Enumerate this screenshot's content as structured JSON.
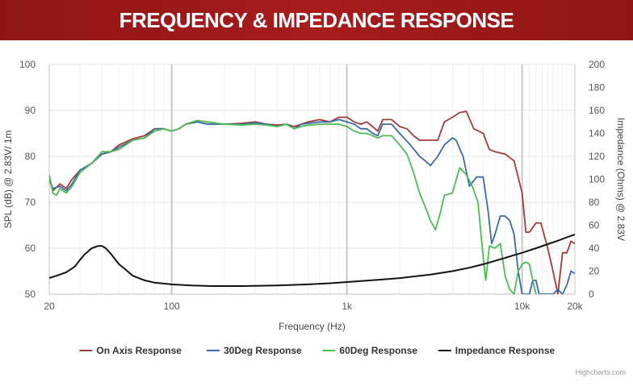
{
  "header": {
    "title": "FREQUENCY & IMPEDANCE RESPONSE"
  },
  "credits": "Highcharts.com",
  "chart_data": {
    "type": "line",
    "xlabel": "Frequency (Hz)",
    "ylabel": "SPL (dB) @ 2.83V/ 1m",
    "y2label": "Impedance (Ohms) @ 2.83V",
    "x_scale": "log",
    "xlim": [
      20,
      20000
    ],
    "ylim": [
      50,
      100
    ],
    "y2lim": [
      0,
      200
    ],
    "grid": true,
    "legend_position": "bottom-center",
    "x_ticks": [
      {
        "value": 20,
        "label": "20"
      },
      {
        "value": 100,
        "label": "100"
      },
      {
        "value": 1000,
        "label": "1k"
      },
      {
        "value": 10000,
        "label": "10k"
      },
      {
        "value": 20000,
        "label": "20k"
      }
    ],
    "y_ticks": [
      50,
      60,
      70,
      80,
      90,
      100
    ],
    "y2_ticks": [
      0,
      20,
      40,
      60,
      80,
      100,
      120,
      140,
      160,
      180,
      200
    ],
    "series": [
      {
        "name": "On Axis Response",
        "color": "#a33a3a",
        "axis": "left",
        "points": [
          [
            20,
            75
          ],
          [
            21,
            72.5
          ],
          [
            23,
            74
          ],
          [
            25,
            73
          ],
          [
            27,
            75
          ],
          [
            30,
            77
          ],
          [
            35,
            78.5
          ],
          [
            40,
            80.5
          ],
          [
            45,
            81
          ],
          [
            50,
            82.5
          ],
          [
            60,
            83.8
          ],
          [
            70,
            84.5
          ],
          [
            80,
            86
          ],
          [
            90,
            86
          ],
          [
            100,
            85.5
          ],
          [
            110,
            86
          ],
          [
            120,
            87
          ],
          [
            140,
            87.5
          ],
          [
            160,
            87
          ],
          [
            200,
            87
          ],
          [
            250,
            87.2
          ],
          [
            300,
            87.5
          ],
          [
            350,
            87
          ],
          [
            400,
            86.8
          ],
          [
            450,
            87
          ],
          [
            500,
            86.5
          ],
          [
            550,
            87
          ],
          [
            600,
            87.5
          ],
          [
            700,
            88
          ],
          [
            800,
            87.5
          ],
          [
            900,
            88.5
          ],
          [
            1000,
            88.5
          ],
          [
            1100,
            87.5
          ],
          [
            1200,
            87
          ],
          [
            1300,
            87.5
          ],
          [
            1400,
            86.5
          ],
          [
            1500,
            85.5
          ],
          [
            1600,
            88
          ],
          [
            1800,
            88
          ],
          [
            2000,
            86.5
          ],
          [
            2200,
            86
          ],
          [
            2400,
            84.5
          ],
          [
            2600,
            83.5
          ],
          [
            3000,
            83.5
          ],
          [
            3300,
            83.5
          ],
          [
            3600,
            87.5
          ],
          [
            4000,
            88.5
          ],
          [
            4400,
            89.5
          ],
          [
            4800,
            89.8
          ],
          [
            5300,
            86
          ],
          [
            6000,
            85
          ],
          [
            6500,
            81.5
          ],
          [
            7000,
            81
          ],
          [
            8000,
            80.5
          ],
          [
            9000,
            79
          ],
          [
            10000,
            72
          ],
          [
            10500,
            63.5
          ],
          [
            11000,
            63.5
          ],
          [
            12000,
            65.5
          ],
          [
            12800,
            65.5
          ],
          [
            14000,
            60
          ],
          [
            15000,
            55
          ],
          [
            16000,
            50
          ],
          [
            17000,
            59
          ],
          [
            18000,
            59
          ],
          [
            19000,
            61.5
          ],
          [
            20000,
            61
          ]
        ]
      },
      {
        "name": "30Deg Response",
        "color": "#3c6aa6",
        "axis": "left",
        "points": [
          [
            20,
            75
          ],
          [
            21,
            73
          ],
          [
            23,
            73.5
          ],
          [
            25,
            72.5
          ],
          [
            27,
            74
          ],
          [
            30,
            77
          ],
          [
            35,
            78.5
          ],
          [
            40,
            80.5
          ],
          [
            45,
            81
          ],
          [
            50,
            82
          ],
          [
            60,
            83.5
          ],
          [
            70,
            84
          ],
          [
            80,
            86
          ],
          [
            90,
            86
          ],
          [
            100,
            85.5
          ],
          [
            110,
            86
          ],
          [
            120,
            87
          ],
          [
            140,
            87.5
          ],
          [
            160,
            87
          ],
          [
            200,
            87
          ],
          [
            250,
            87
          ],
          [
            300,
            87.3
          ],
          [
            350,
            87
          ],
          [
            400,
            86.5
          ],
          [
            450,
            87
          ],
          [
            500,
            86
          ],
          [
            550,
            87
          ],
          [
            600,
            87.2
          ],
          [
            700,
            87.5
          ],
          [
            800,
            87.5
          ],
          [
            900,
            88
          ],
          [
            1000,
            87.5
          ],
          [
            1100,
            87
          ],
          [
            1200,
            86
          ],
          [
            1300,
            86
          ],
          [
            1400,
            85
          ],
          [
            1500,
            84.5
          ],
          [
            1600,
            87
          ],
          [
            1800,
            87
          ],
          [
            2000,
            85
          ],
          [
            2300,
            82.5
          ],
          [
            2600,
            80
          ],
          [
            2800,
            79
          ],
          [
            3000,
            78
          ],
          [
            3300,
            80
          ],
          [
            3600,
            82.5
          ],
          [
            4000,
            84
          ],
          [
            4200,
            83.5
          ],
          [
            4600,
            80
          ],
          [
            5000,
            73.5
          ],
          [
            5500,
            75.5
          ],
          [
            6000,
            75.5
          ],
          [
            6400,
            68
          ],
          [
            6700,
            61
          ],
          [
            7000,
            63
          ],
          [
            7500,
            67
          ],
          [
            8000,
            67
          ],
          [
            8500,
            66
          ],
          [
            9000,
            63
          ],
          [
            9500,
            55
          ],
          [
            10000,
            50
          ],
          [
            11000,
            50
          ],
          [
            11500,
            53
          ],
          [
            12000,
            53
          ],
          [
            12500,
            50
          ],
          [
            13000,
            50
          ],
          [
            14000,
            50
          ],
          [
            15000,
            50
          ],
          [
            16000,
            51
          ],
          [
            17000,
            50
          ],
          [
            18000,
            52
          ],
          [
            19000,
            55
          ],
          [
            20000,
            54.5
          ]
        ]
      },
      {
        "name": "60Deg Response",
        "color": "#4cbb56",
        "axis": "left",
        "points": [
          [
            20,
            76
          ],
          [
            21,
            72
          ],
          [
            22,
            71.5
          ],
          [
            23,
            73
          ],
          [
            25,
            72
          ],
          [
            27,
            73.5
          ],
          [
            30,
            76.5
          ],
          [
            35,
            78.5
          ],
          [
            40,
            81
          ],
          [
            45,
            81
          ],
          [
            50,
            81.5
          ],
          [
            60,
            83.5
          ],
          [
            70,
            84
          ],
          [
            80,
            85.5
          ],
          [
            90,
            86
          ],
          [
            100,
            85.5
          ],
          [
            110,
            86
          ],
          [
            120,
            87
          ],
          [
            140,
            87.8
          ],
          [
            160,
            87.5
          ],
          [
            200,
            87
          ],
          [
            250,
            86.8
          ],
          [
            300,
            87
          ],
          [
            350,
            86.8
          ],
          [
            400,
            86.5
          ],
          [
            450,
            87
          ],
          [
            500,
            86
          ],
          [
            550,
            86.5
          ],
          [
            600,
            86.8
          ],
          [
            700,
            87
          ],
          [
            800,
            87
          ],
          [
            900,
            87
          ],
          [
            1000,
            86.5
          ],
          [
            1100,
            85.5
          ],
          [
            1200,
            85
          ],
          [
            1300,
            85
          ],
          [
            1400,
            84.5
          ],
          [
            1500,
            84
          ],
          [
            1600,
            84.5
          ],
          [
            1800,
            84.5
          ],
          [
            2000,
            82.5
          ],
          [
            2200,
            80.5
          ],
          [
            2400,
            76.5
          ],
          [
            2600,
            72
          ],
          [
            2800,
            69
          ],
          [
            3000,
            66
          ],
          [
            3200,
            64
          ],
          [
            3400,
            67.5
          ],
          [
            3600,
            71.5
          ],
          [
            4000,
            72
          ],
          [
            4400,
            77.5
          ],
          [
            4800,
            76
          ],
          [
            5200,
            73.5
          ],
          [
            5600,
            70
          ],
          [
            6000,
            58
          ],
          [
            6200,
            53
          ],
          [
            6500,
            60.5
          ],
          [
            7000,
            60
          ],
          [
            7500,
            61
          ],
          [
            8000,
            54
          ],
          [
            8500,
            51
          ],
          [
            9000,
            50
          ],
          [
            9500,
            55
          ],
          [
            10000,
            56.5
          ],
          [
            10500,
            57
          ],
          [
            11000,
            56.5
          ],
          [
            11500,
            53
          ],
          [
            12000,
            50
          ]
        ]
      },
      {
        "name": "Impedance Response",
        "color": "#111111",
        "axis": "right",
        "points": [
          [
            20,
            14
          ],
          [
            22,
            16
          ],
          [
            25,
            19
          ],
          [
            28,
            24
          ],
          [
            30,
            30
          ],
          [
            32,
            35
          ],
          [
            35,
            40
          ],
          [
            38,
            42
          ],
          [
            40,
            42
          ],
          [
            42,
            40
          ],
          [
            45,
            35
          ],
          [
            50,
            26
          ],
          [
            55,
            21
          ],
          [
            60,
            16
          ],
          [
            70,
            12
          ],
          [
            80,
            10
          ],
          [
            100,
            8.5
          ],
          [
            130,
            7.5
          ],
          [
            170,
            7
          ],
          [
            250,
            7
          ],
          [
            400,
            7.5
          ],
          [
            600,
            8.5
          ],
          [
            800,
            9.5
          ],
          [
            1000,
            10.5
          ],
          [
            1500,
            12.5
          ],
          [
            2000,
            14
          ],
          [
            3000,
            17
          ],
          [
            4000,
            20
          ],
          [
            5000,
            23
          ],
          [
            6000,
            26
          ],
          [
            7000,
            29
          ],
          [
            8000,
            31.5
          ],
          [
            9000,
            34
          ],
          [
            10000,
            36
          ],
          [
            12000,
            40
          ],
          [
            14000,
            43.5
          ],
          [
            16000,
            46.5
          ],
          [
            18000,
            49.5
          ],
          [
            20000,
            52
          ]
        ]
      }
    ]
  }
}
